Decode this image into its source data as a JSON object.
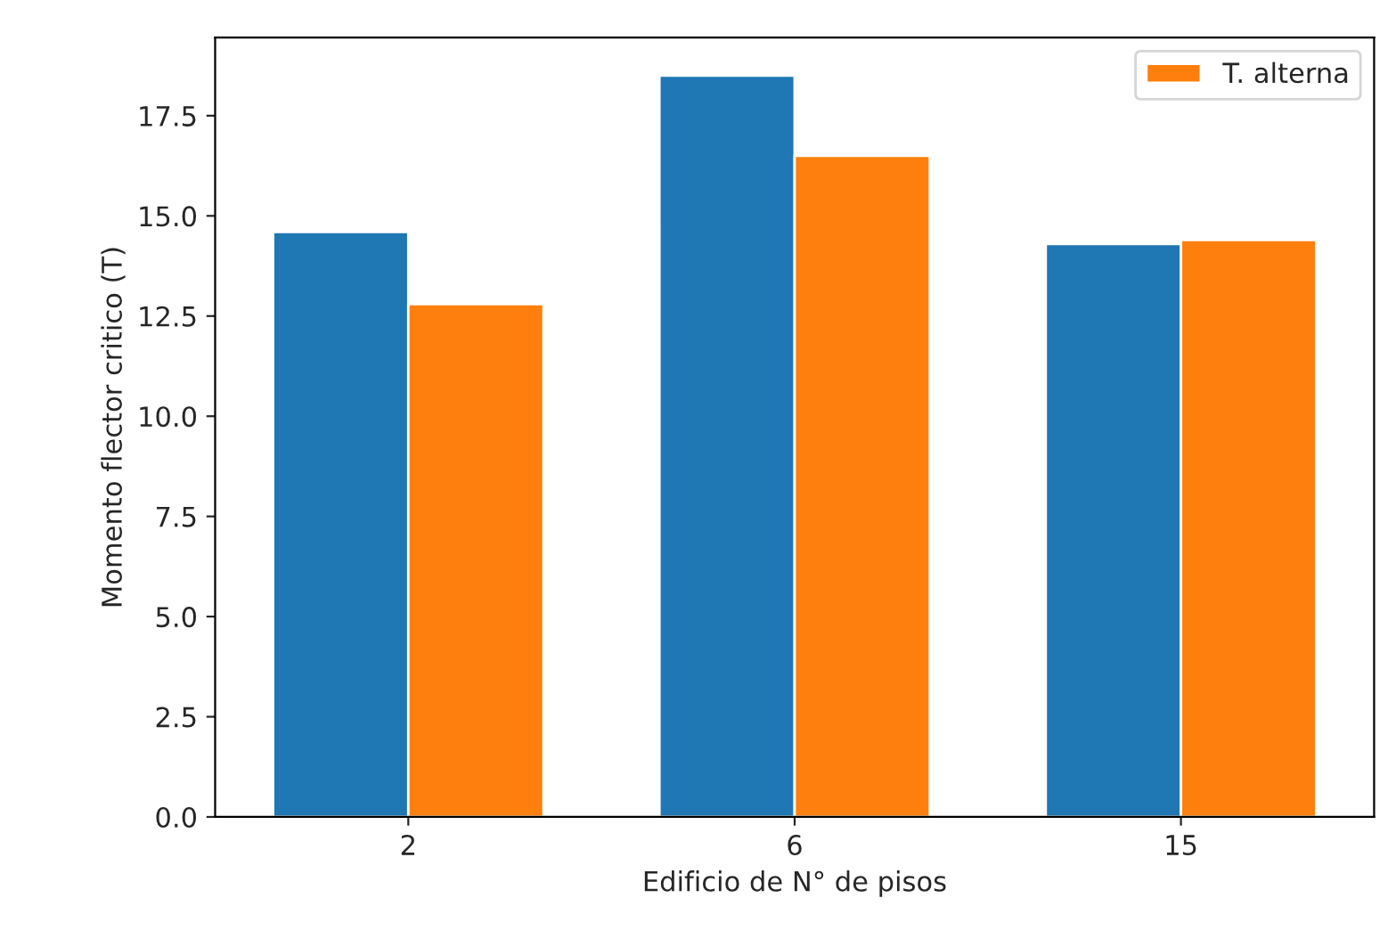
{
  "chart_data": {
    "type": "bar",
    "xlabel": "Edificio de N° de pisos",
    "ylabel": "Momento flector critico (T)",
    "categories": [
      "2",
      "6",
      "15"
    ],
    "series": [
      {
        "color": "#1f77b4",
        "values": [
          14.6,
          18.5,
          14.3
        ]
      },
      {
        "name": "T. alterna",
        "color": "#ff7f0e",
        "values": [
          12.8,
          16.5,
          14.4
        ]
      }
    ],
    "ylim": [
      0,
      19.45
    ],
    "yticks": [
      {
        "value": 0,
        "label": "0.0"
      },
      {
        "value": 2.5,
        "label": "2.5"
      },
      {
        "value": 5,
        "label": "5.0"
      },
      {
        "value": 7.5,
        "label": "7.5"
      },
      {
        "value": 10,
        "label": "10.0"
      },
      {
        "value": 12.5,
        "label": "12.5"
      },
      {
        "value": 15,
        "label": "15.0"
      },
      {
        "value": 17.5,
        "label": "17.5"
      }
    ],
    "legend": "top right",
    "grid": false
  }
}
